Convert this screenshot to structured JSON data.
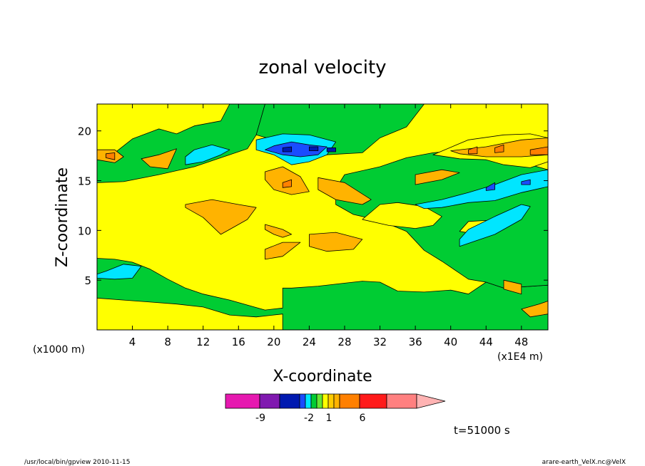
{
  "chart_data": {
    "type": "heatmap",
    "title": "zonal velocity",
    "xlabel": "X-coordinate",
    "ylabel": "Z-coordinate",
    "x_scale_note": "(x1E4 m)",
    "y_scale_note": "(x1000 m)",
    "x_ticks": [
      "4",
      "8",
      "12",
      "16",
      "20",
      "24",
      "28",
      "32",
      "36",
      "40",
      "44",
      "48"
    ],
    "y_ticks": [
      "5",
      "10",
      "15",
      "20"
    ],
    "xlim": [
      0,
      51
    ],
    "ylim": [
      0,
      22.7
    ],
    "colorbar": {
      "tick_labels": [
        "-9",
        "-2",
        "1",
        "6"
      ],
      "colors": [
        "#e619b0",
        "#8019b0",
        "#0019b0",
        "#1a4cff",
        "#00e6ff",
        "#00cc33",
        "#66e633",
        "#ffff00",
        "#ffcc00",
        "#ffb300",
        "#ff8000",
        "#ff1a1a",
        "#ff8080",
        "#ffb3b3"
      ]
    },
    "fill_colors": {
      "magenta": "#e619b0",
      "purple": "#8019b0",
      "dark_blue": "#0019b0",
      "blue": "#1a4cff",
      "cyan": "#00e6ff",
      "green": "#00cc33",
      "yellow": "#ffff00",
      "orange": "#ffb300",
      "dark_orange": "#ff8000"
    },
    "regions": [
      {
        "color": "green",
        "points": [
          [
            0,
            0
          ],
          [
            51,
            0
          ],
          [
            51,
            4.5
          ],
          [
            46,
            4.2
          ],
          [
            44,
            4.8
          ],
          [
            42,
            3.6
          ],
          [
            40,
            4.0
          ],
          [
            37,
            3.8
          ],
          [
            34,
            3.9
          ],
          [
            32,
            4.8
          ],
          [
            30,
            4.9
          ],
          [
            28,
            4.7
          ],
          [
            25,
            4.4
          ],
          [
            22,
            4.2
          ],
          [
            21,
            4.2
          ],
          [
            21,
            2.2
          ],
          [
            19,
            2.0
          ],
          [
            15,
            3.0
          ],
          [
            12,
            3.6
          ],
          [
            10,
            4.2
          ],
          [
            8,
            5.1
          ],
          [
            6,
            6.1
          ],
          [
            4,
            6.8
          ],
          [
            2,
            7.1
          ],
          [
            0,
            7.2
          ]
        ]
      },
      {
        "color": "yellow",
        "points": [
          [
            0,
            0
          ],
          [
            21,
            0
          ],
          [
            21,
            1.6
          ],
          [
            18,
            1.3
          ],
          [
            15,
            1.5
          ],
          [
            12,
            2.3
          ],
          [
            9,
            2.6
          ],
          [
            6,
            2.8
          ],
          [
            3,
            3.0
          ],
          [
            0,
            3.2
          ]
        ]
      },
      {
        "color": "green",
        "points": [
          [
            0,
            14.8
          ],
          [
            3,
            14.9
          ],
          [
            7,
            15.6
          ],
          [
            11,
            16.4
          ],
          [
            14,
            17.3
          ],
          [
            17,
            18.2
          ],
          [
            18,
            19.6
          ],
          [
            19,
            22.7
          ],
          [
            0,
            22.7
          ]
        ]
      },
      {
        "color": "yellow",
        "points": [
          [
            0,
            18.0
          ],
          [
            2,
            17.8
          ],
          [
            4,
            19.2
          ],
          [
            7,
            20.2
          ],
          [
            9,
            19.7
          ],
          [
            11,
            20.5
          ],
          [
            14,
            21.0
          ],
          [
            15,
            22.7
          ],
          [
            0,
            22.7
          ]
        ]
      },
      {
        "color": "green",
        "points": [
          [
            18,
            19.6
          ],
          [
            20,
            19.1
          ],
          [
            23,
            18.1
          ],
          [
            26,
            17.6
          ],
          [
            30,
            17.8
          ],
          [
            32,
            19.3
          ],
          [
            35,
            20.4
          ],
          [
            37,
            22.7
          ],
          [
            19,
            22.7
          ]
        ]
      },
      {
        "color": "green",
        "points": [
          [
            28,
            15.6
          ],
          [
            32,
            16.4
          ],
          [
            35,
            17.3
          ],
          [
            38,
            17.8
          ],
          [
            42,
            18.1
          ],
          [
            46,
            17.4
          ],
          [
            49,
            16.6
          ],
          [
            51,
            16.1
          ],
          [
            51,
            4.5
          ],
          [
            46,
            4.2
          ],
          [
            44,
            4.8
          ],
          [
            42,
            5.1
          ],
          [
            39,
            6.9
          ],
          [
            37,
            8.0
          ],
          [
            35,
            9.9
          ],
          [
            32,
            11.0
          ],
          [
            29,
            11.6
          ],
          [
            27,
            12.6
          ],
          [
            27,
            14.2
          ]
        ]
      },
      {
        "color": "yellow",
        "points": [
          [
            30,
            11.1
          ],
          [
            33,
            10.5
          ],
          [
            36,
            10.2
          ],
          [
            38,
            10.5
          ],
          [
            39,
            11.4
          ],
          [
            37,
            12.4
          ],
          [
            34,
            12.8
          ],
          [
            32,
            12.6
          ]
        ]
      },
      {
        "color": "yellow",
        "points": [
          [
            41,
            9.9
          ],
          [
            43,
            9.6
          ],
          [
            45,
            10.2
          ],
          [
            44,
            11.0
          ],
          [
            42,
            10.9
          ]
        ]
      },
      {
        "color": "yellow",
        "points": [
          [
            38,
            17.6
          ],
          [
            42,
            19.1
          ],
          [
            46,
            19.6
          ],
          [
            49,
            19.7
          ],
          [
            51,
            19.3
          ],
          [
            51,
            16.9
          ],
          [
            49,
            16.3
          ],
          [
            46,
            16.6
          ],
          [
            44,
            17.1
          ],
          [
            41,
            17.2
          ]
        ]
      },
      {
        "color": "orange",
        "points": [
          [
            0,
            17.1
          ],
          [
            2,
            16.8
          ],
          [
            3,
            17.4
          ],
          [
            2,
            18.1
          ],
          [
            0,
            18.1
          ]
        ]
      },
      {
        "color": "orange",
        "points": [
          [
            5,
            17.2
          ],
          [
            7,
            17.6
          ],
          [
            9,
            18.2
          ],
          [
            8,
            16.2
          ],
          [
            6,
            16.4
          ]
        ]
      },
      {
        "color": "orange",
        "points": [
          [
            10,
            12.6
          ],
          [
            13,
            13.1
          ],
          [
            16,
            12.6
          ],
          [
            18,
            12.3
          ],
          [
            17,
            11.1
          ],
          [
            15,
            10.1
          ],
          [
            14,
            9.6
          ],
          [
            12,
            11.3
          ],
          [
            10,
            12.3
          ]
        ]
      },
      {
        "color": "orange",
        "points": [
          [
            19,
            10.6
          ],
          [
            21,
            10.1
          ],
          [
            22,
            9.6
          ],
          [
            21,
            9.3
          ],
          [
            20,
            9.6
          ],
          [
            19,
            10.1
          ]
        ]
      },
      {
        "color": "orange",
        "points": [
          [
            19,
            15.9
          ],
          [
            21,
            16.4
          ],
          [
            23,
            15.4
          ],
          [
            24,
            13.9
          ],
          [
            22,
            13.6
          ],
          [
            20,
            14.1
          ],
          [
            19,
            15.1
          ]
        ]
      },
      {
        "color": "orange",
        "points": [
          [
            25,
            15.3
          ],
          [
            28,
            14.8
          ],
          [
            31,
            13.1
          ],
          [
            30,
            12.6
          ],
          [
            27,
            13.1
          ],
          [
            25,
            14.1
          ]
        ]
      },
      {
        "color": "orange",
        "points": [
          [
            24,
            9.6
          ],
          [
            27,
            9.8
          ],
          [
            30,
            9.1
          ],
          [
            29,
            8.1
          ],
          [
            26,
            7.9
          ],
          [
            24,
            8.4
          ]
        ]
      },
      {
        "color": "orange",
        "points": [
          [
            19,
            7.1
          ],
          [
            21,
            7.4
          ],
          [
            22,
            8.1
          ],
          [
            23,
            8.8
          ],
          [
            21,
            8.8
          ],
          [
            19,
            8.1
          ]
        ]
      },
      {
        "color": "orange",
        "points": [
          [
            36,
            14.6
          ],
          [
            39,
            15.1
          ],
          [
            41,
            15.8
          ],
          [
            39,
            16.1
          ],
          [
            36,
            15.6
          ]
        ]
      },
      {
        "color": "orange",
        "points": [
          [
            40,
            18.0
          ],
          [
            44,
            18.4
          ],
          [
            48,
            19.1
          ],
          [
            51,
            19.3
          ],
          [
            51,
            17.6
          ],
          [
            48,
            17.4
          ],
          [
            44,
            17.4
          ],
          [
            41,
            17.7
          ]
        ]
      },
      {
        "color": "orange",
        "points": [
          [
            46,
            4.1
          ],
          [
            48,
            3.6
          ],
          [
            48,
            4.6
          ],
          [
            46,
            5.0
          ]
        ]
      },
      {
        "color": "orange",
        "points": [
          [
            48,
            2.1
          ],
          [
            50,
            2.6
          ],
          [
            51,
            2.9
          ],
          [
            51,
            1.6
          ],
          [
            49,
            1.3
          ]
        ]
      },
      {
        "color": "dark_orange",
        "points": [
          [
            1,
            17.3
          ],
          [
            2,
            17.1
          ],
          [
            2,
            17.8
          ],
          [
            1,
            17.7
          ]
        ]
      },
      {
        "color": "dark_orange",
        "points": [
          [
            21,
            14.8
          ],
          [
            22,
            15.1
          ],
          [
            22,
            14.4
          ],
          [
            21,
            14.3
          ]
        ]
      },
      {
        "color": "dark_orange",
        "points": [
          [
            42,
            18.1
          ],
          [
            43,
            18.4
          ],
          [
            43,
            17.7
          ],
          [
            42,
            17.7
          ]
        ]
      },
      {
        "color": "dark_orange",
        "points": [
          [
            45,
            18.3
          ],
          [
            46,
            18.6
          ],
          [
            46,
            17.9
          ],
          [
            45,
            17.8
          ]
        ]
      },
      {
        "color": "dark_orange",
        "points": [
          [
            49,
            18.1
          ],
          [
            51,
            18.4
          ],
          [
            51,
            17.6
          ],
          [
            49,
            17.6
          ]
        ]
      },
      {
        "color": "cyan",
        "points": [
          [
            10,
            16.6
          ],
          [
            12,
            16.9
          ],
          [
            14,
            17.6
          ],
          [
            15,
            18.1
          ],
          [
            13,
            18.6
          ],
          [
            11,
            18.1
          ],
          [
            10,
            17.4
          ]
        ]
      },
      {
        "color": "cyan",
        "points": [
          [
            18,
            19.1
          ],
          [
            21,
            19.7
          ],
          [
            24,
            19.6
          ],
          [
            27,
            18.9
          ],
          [
            26,
            17.6
          ],
          [
            24,
            16.9
          ],
          [
            22,
            16.6
          ],
          [
            20,
            17.6
          ],
          [
            18,
            18.1
          ]
        ]
      },
      {
        "color": "cyan",
        "points": [
          [
            36,
            12.6
          ],
          [
            39,
            13.1
          ],
          [
            42,
            13.8
          ],
          [
            45,
            14.6
          ],
          [
            48,
            15.6
          ],
          [
            51,
            16.1
          ],
          [
            51,
            14.4
          ],
          [
            48,
            13.8
          ],
          [
            45,
            13.0
          ],
          [
            42,
            12.8
          ],
          [
            39,
            12.3
          ],
          [
            37,
            12.2
          ]
        ]
      },
      {
        "color": "cyan",
        "points": [
          [
            41,
            8.4
          ],
          [
            45,
            9.6
          ],
          [
            48,
            11.1
          ],
          [
            49,
            12.4
          ],
          [
            48,
            12.6
          ],
          [
            45,
            11.4
          ],
          [
            42,
            10.1
          ],
          [
            41,
            9.1
          ]
        ]
      },
      {
        "color": "cyan",
        "points": [
          [
            0,
            5.6
          ],
          [
            1,
            5.9
          ],
          [
            3,
            6.6
          ],
          [
            5,
            6.4
          ],
          [
            4,
            5.2
          ],
          [
            2,
            5.1
          ],
          [
            0,
            5.2
          ]
        ]
      },
      {
        "color": "blue",
        "points": [
          [
            20,
            18.5
          ],
          [
            22,
            18.9
          ],
          [
            24,
            18.6
          ],
          [
            26,
            18.4
          ],
          [
            25,
            17.6
          ],
          [
            23,
            17.4
          ],
          [
            21,
            17.6
          ],
          [
            19,
            18.1
          ]
        ]
      },
      {
        "color": "blue",
        "points": [
          [
            44,
            14.3
          ],
          [
            45,
            14.8
          ],
          [
            45,
            14.1
          ],
          [
            44,
            14.0
          ]
        ]
      },
      {
        "color": "blue",
        "points": [
          [
            48,
            14.9
          ],
          [
            49,
            15.1
          ],
          [
            49,
            14.6
          ],
          [
            48,
            14.6
          ]
        ]
      },
      {
        "color": "dark_blue",
        "points": [
          [
            21,
            18.3
          ],
          [
            22,
            18.4
          ],
          [
            22,
            17.9
          ],
          [
            21,
            17.9
          ]
        ]
      },
      {
        "color": "dark_blue",
        "points": [
          [
            24,
            18.4
          ],
          [
            25,
            18.4
          ],
          [
            25,
            18.0
          ],
          [
            24,
            18.0
          ]
        ]
      },
      {
        "color": "dark_blue",
        "points": [
          [
            26,
            18.3
          ],
          [
            27,
            18.3
          ],
          [
            27,
            17.9
          ],
          [
            26,
            17.9
          ]
        ]
      }
    ]
  },
  "time_label": "t=51000 s",
  "footer": {
    "left": "/usr/local/bin/gpview  2010-11-15",
    "right": "arare-earth_VelX.nc@VelX"
  }
}
